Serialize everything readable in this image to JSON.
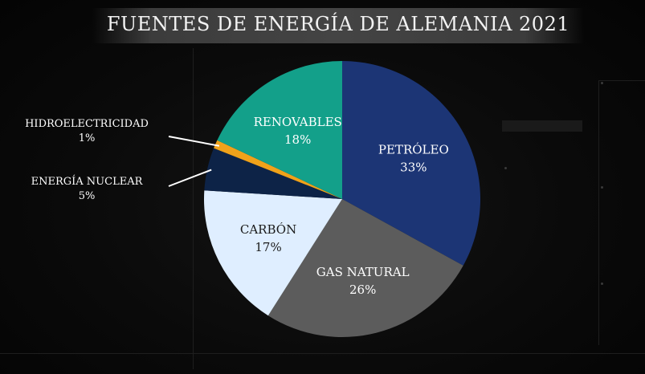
{
  "chart_data": {
    "type": "pie",
    "title": "FUENTES DE ENERGÍA DE ALEMANIA 2021",
    "slices": [
      {
        "name": "PETRÓLEO",
        "label": "33%",
        "value": 33,
        "color": "#1c3575",
        "text_color": "#ffffff"
      },
      {
        "name": "GAS NATURAL",
        "label": "26%",
        "value": 26,
        "color": "#5c5c5c",
        "text_color": "#ffffff"
      },
      {
        "name": "CARBÓN",
        "label": "17%",
        "value": 17,
        "color": "#dfeeff",
        "text_color": "#1a1a1a"
      },
      {
        "name": "ENERGÍA NUCLEAR",
        "label": "5%",
        "value": 5,
        "color": "#0d2347",
        "text_color": "#ffffff"
      },
      {
        "name": "HIDROELECTRICIDAD",
        "label": "1%",
        "value": 1,
        "color": "#f0a21a",
        "text_color": "#ffffff"
      },
      {
        "name": "RENOVABLES",
        "label": "18%",
        "value": 18,
        "color": "#13a08a",
        "text_color": "#ffffff"
      }
    ]
  }
}
